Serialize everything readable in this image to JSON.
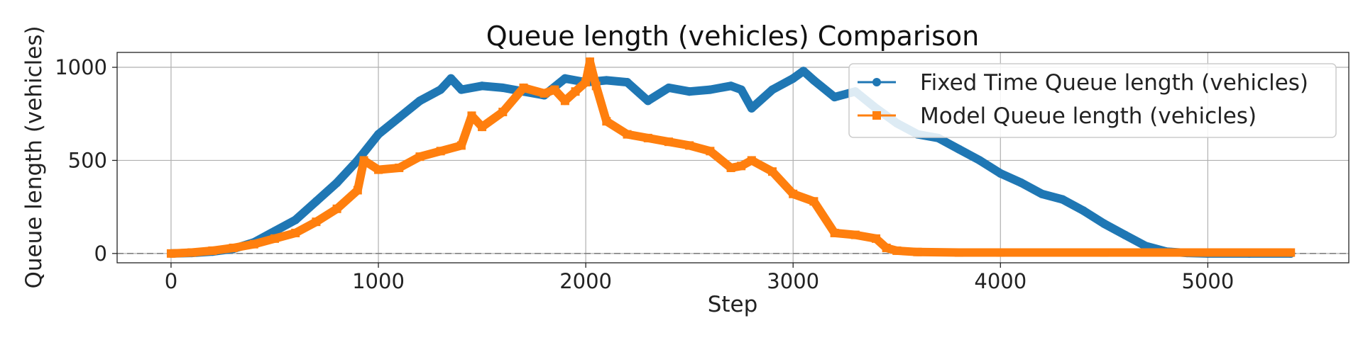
{
  "chart_data": {
    "type": "line",
    "title": "Queue length (vehicles) Comparison",
    "xlabel": "Step",
    "ylabel": "Queue length (vehicles)",
    "xlim": [
      -260,
      5680
    ],
    "ylim": [
      -50,
      1080
    ],
    "xticks": [
      0,
      1000,
      2000,
      3000,
      4000,
      5000
    ],
    "yticks": [
      0,
      500,
      1000
    ],
    "grid": true,
    "legend_position": "top-right",
    "reference_line": {
      "y": 0,
      "style": "dashed",
      "color": "#7f7f7f"
    },
    "series": [
      {
        "name": "Fixed Time Queue length (vehicles)",
        "color": "#1f77b4",
        "marker": "circle",
        "x": [
          0,
          100,
          200,
          300,
          400,
          500,
          600,
          700,
          800,
          900,
          1000,
          1100,
          1200,
          1300,
          1350,
          1400,
          1500,
          1600,
          1700,
          1800,
          1900,
          2000,
          2100,
          2200,
          2300,
          2400,
          2500,
          2600,
          2700,
          2750,
          2800,
          2900,
          3000,
          3050,
          3100,
          3200,
          3300,
          3400,
          3500,
          3600,
          3700,
          3800,
          3900,
          4000,
          4100,
          4200,
          4300,
          4400,
          4500,
          4600,
          4700,
          4800,
          4900,
          5000,
          5200,
          5400
        ],
        "y": [
          0,
          3,
          10,
          25,
          60,
          120,
          180,
          280,
          380,
          500,
          640,
          730,
          820,
          880,
          940,
          880,
          900,
          890,
          870,
          850,
          940,
          920,
          930,
          920,
          820,
          890,
          870,
          880,
          900,
          880,
          780,
          880,
          940,
          980,
          930,
          840,
          870,
          780,
          700,
          640,
          620,
          560,
          500,
          430,
          380,
          320,
          290,
          230,
          160,
          100,
          40,
          10,
          3,
          0,
          0,
          0
        ]
      },
      {
        "name": "Model Queue length (vehicles)",
        "color": "#ff7f0e",
        "marker": "square",
        "x": [
          0,
          100,
          200,
          300,
          400,
          500,
          600,
          700,
          800,
          900,
          930,
          1000,
          1100,
          1200,
          1300,
          1400,
          1450,
          1500,
          1600,
          1700,
          1800,
          1850,
          1900,
          1950,
          2000,
          2020,
          2050,
          2100,
          2200,
          2300,
          2400,
          2500,
          2600,
          2700,
          2750,
          2800,
          2900,
          3000,
          3100,
          3200,
          3300,
          3400,
          3450,
          3500,
          3600,
          3800,
          4000,
          4500,
          5000,
          5400
        ],
        "y": [
          0,
          5,
          15,
          30,
          50,
          80,
          110,
          170,
          240,
          340,
          500,
          450,
          460,
          520,
          550,
          580,
          740,
          680,
          760,
          890,
          860,
          880,
          820,
          870,
          920,
          1030,
          900,
          710,
          640,
          620,
          600,
          580,
          550,
          460,
          470,
          500,
          440,
          320,
          280,
          110,
          100,
          80,
          30,
          15,
          8,
          5,
          5,
          5,
          5,
          5
        ]
      }
    ]
  }
}
